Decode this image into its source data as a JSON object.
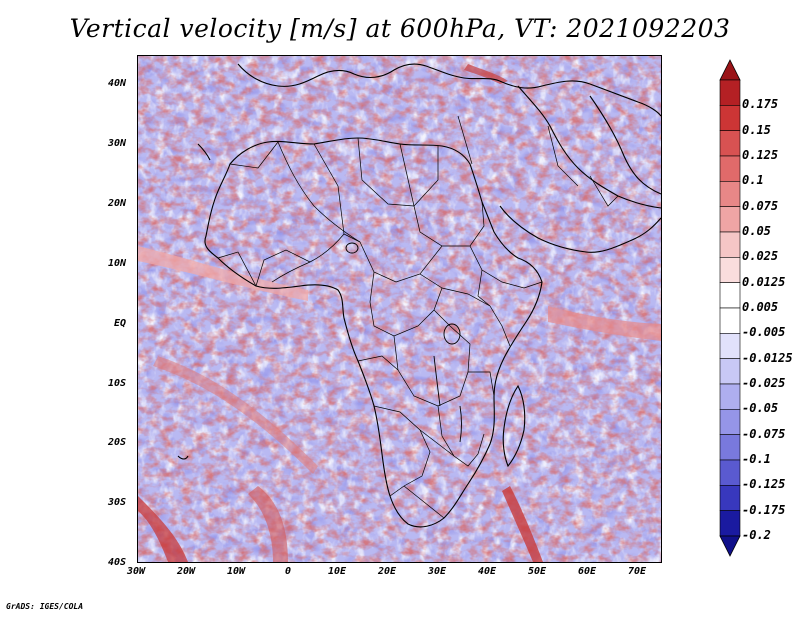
{
  "title": "Vertical velocity [m/s] at 600hPa, VT: 2021092203",
  "footer": "GrADS: IGES/COLA",
  "map": {
    "region": "Africa",
    "lat_labels": [
      "40N",
      "30N",
      "20N",
      "10N",
      "EQ",
      "10S",
      "20S",
      "30S",
      "40S"
    ],
    "lon_labels": [
      "30W",
      "20W",
      "10W",
      "0",
      "10E",
      "20E",
      "30E",
      "40E",
      "50E",
      "60E",
      "70E"
    ],
    "lat_range": [
      -40,
      45
    ],
    "lon_range": [
      -30,
      75
    ]
  },
  "colorbar": {
    "levels": [
      "0.175",
      "0.15",
      "0.125",
      "0.1",
      "0.075",
      "0.05",
      "0.025",
      "0.0125",
      "0.005",
      "-0.005",
      "-0.0125",
      "-0.025",
      "-0.05",
      "-0.075",
      "-0.1",
      "-0.125",
      "-0.175",
      "-0.2"
    ],
    "colors": [
      "#b42024",
      "#cc3535",
      "#d85252",
      "#e06a6a",
      "#e88787",
      "#efa5a5",
      "#f5c6c6",
      "#fadddd",
      "#ffffff",
      "#ffffff",
      "#e1e1fb",
      "#c8c8f5",
      "#aeaeef",
      "#9595e8",
      "#7979dd",
      "#5a5ad0",
      "#3838bd",
      "#1a1aa0"
    ],
    "top_arrow_color": "#9a1418",
    "bottom_arrow_color": "#10108a"
  }
}
